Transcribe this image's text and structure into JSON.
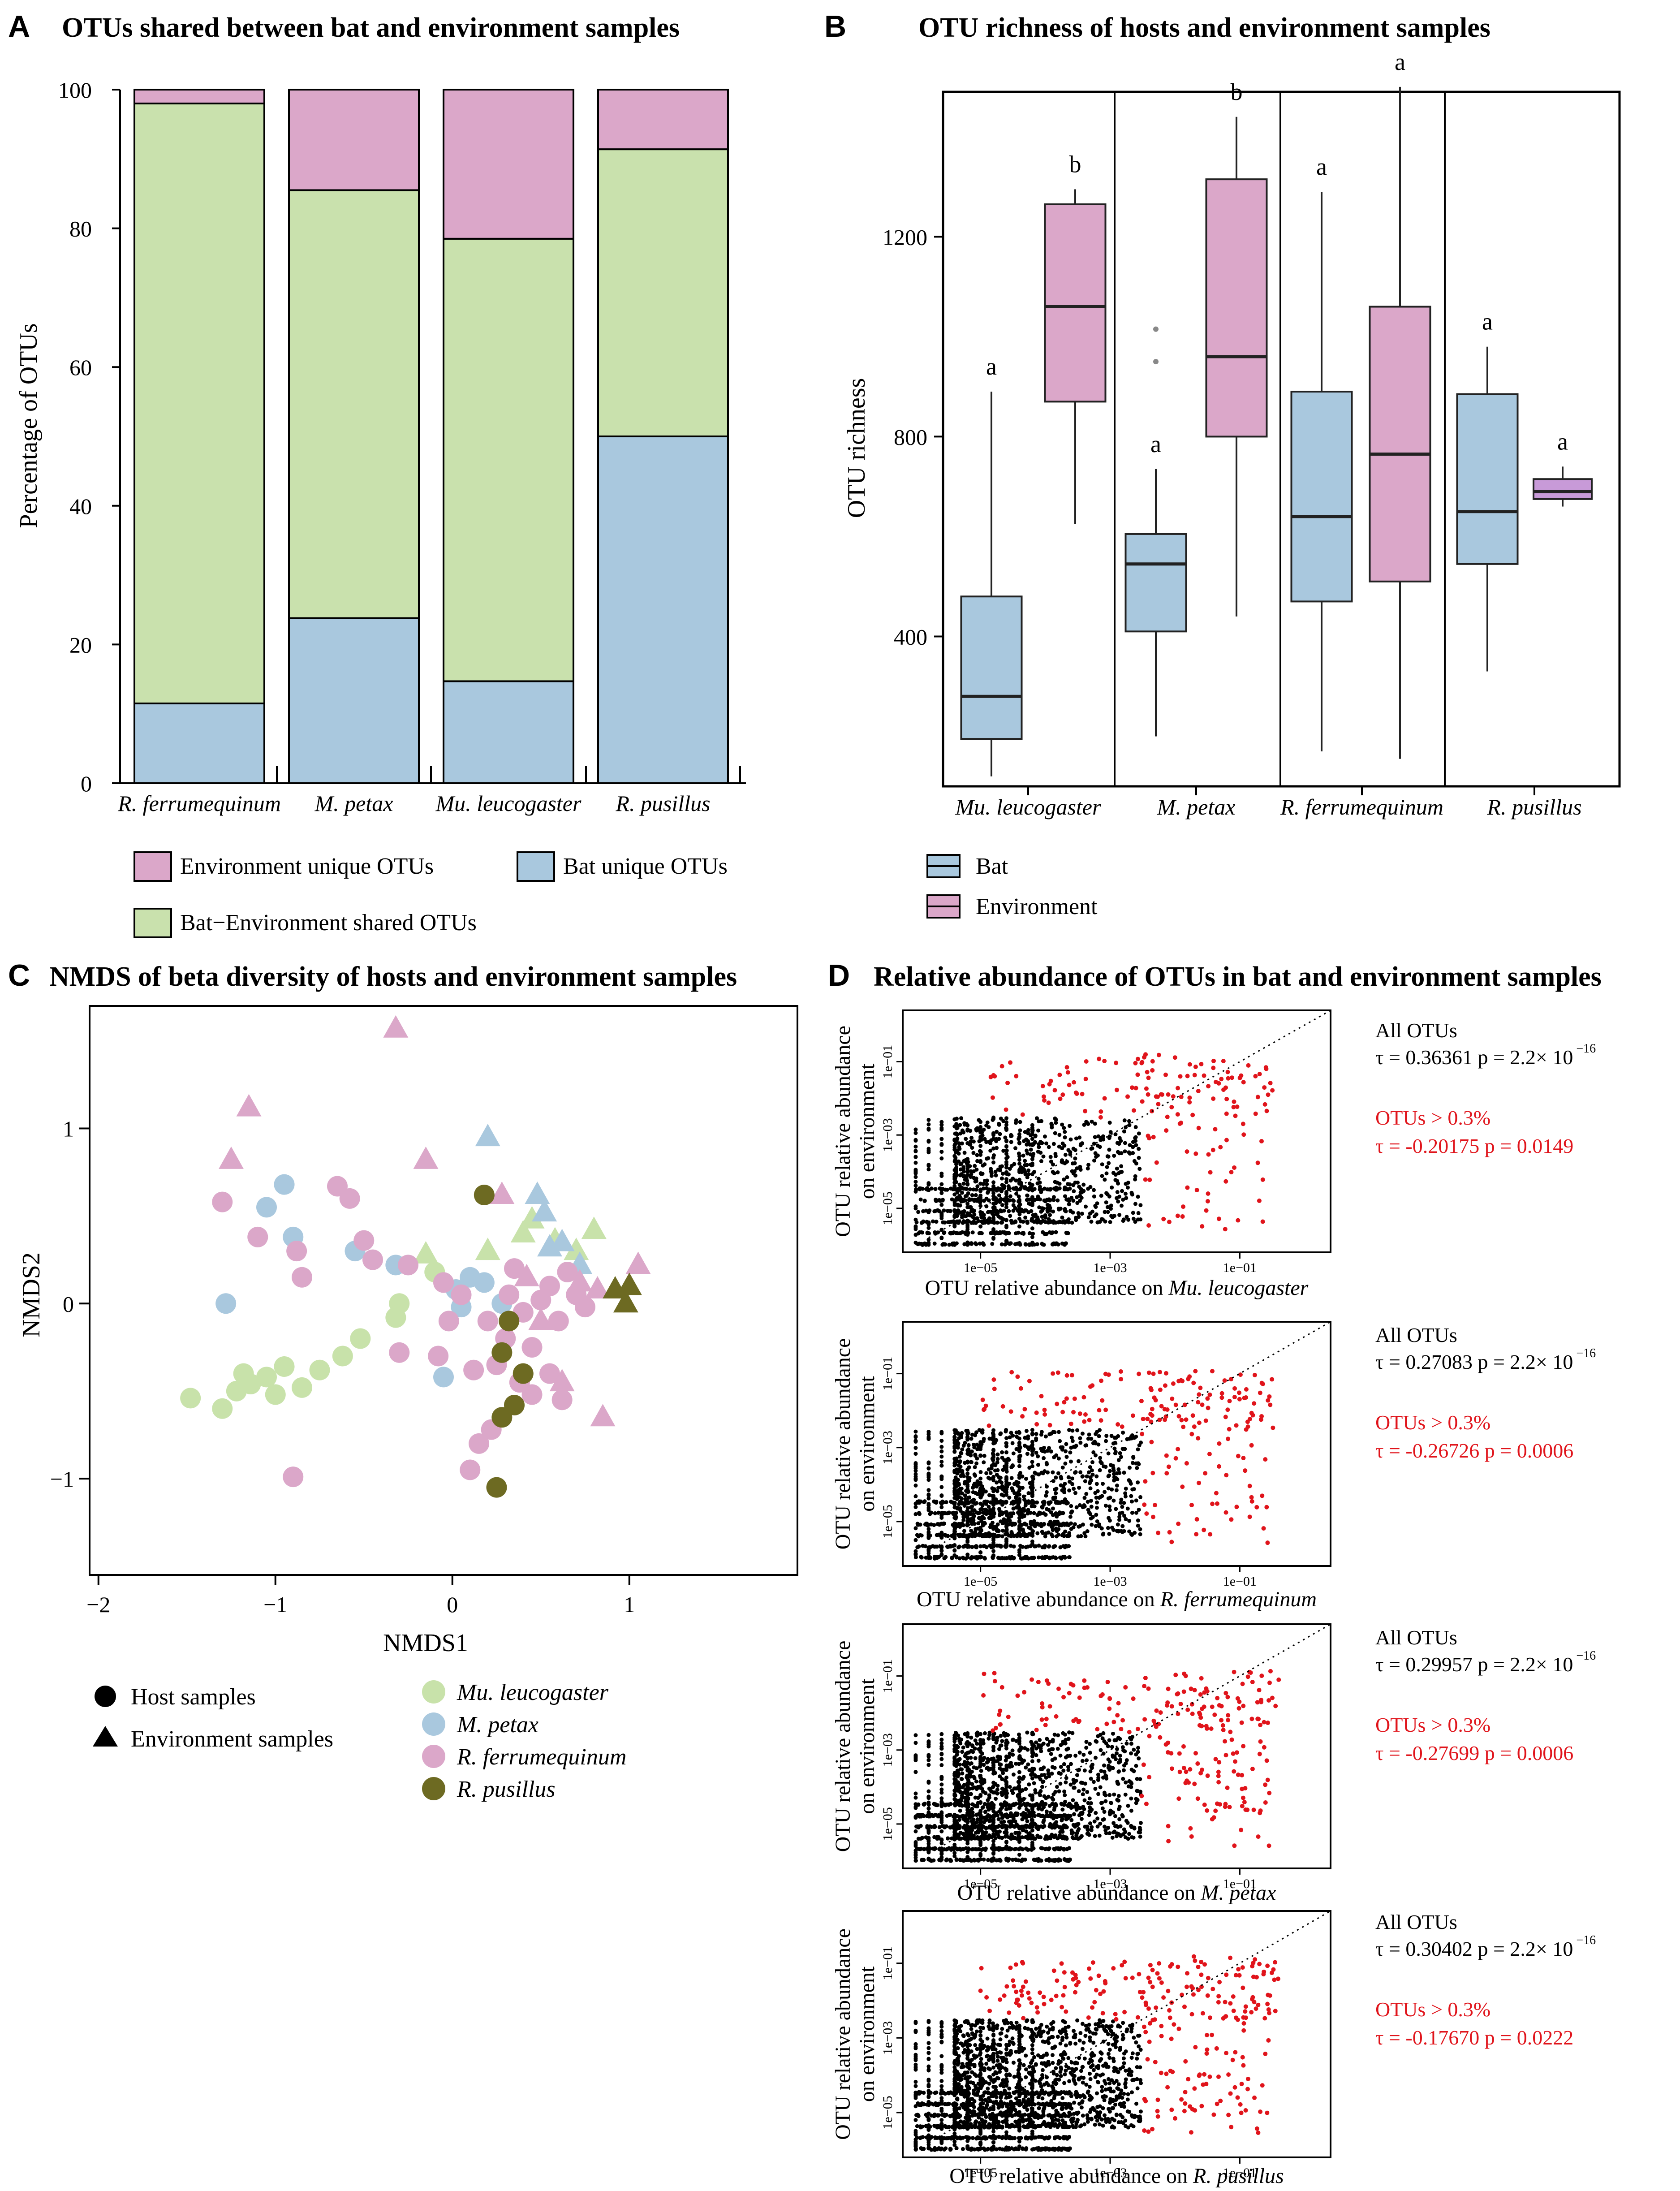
{
  "colors": {
    "env": "#dba7c9",
    "bat": "#a9c8de",
    "shared": "#c9e1ad",
    "mu": "#c8e2aa",
    "mpetax": "#a9c8de",
    "rferrum": "#dba7c9",
    "rpusillus": "#6d6a22",
    "red": "#e0141b",
    "black": "#000000",
    "batbox": "#a9c8de",
    "envbox": "#dba7c9",
    "envbox_small": "#c89ad8"
  },
  "chart_data": [
    {
      "panel": "A",
      "type": "bar",
      "stacked": true,
      "title": "OTUs shared between bat and environment samples",
      "ylabel": "Percentage of OTUs",
      "ylim": [
        0,
        100
      ],
      "yticks": [
        "0",
        "20",
        "40",
        "60",
        "80",
        "100"
      ],
      "categories": [
        "R. ferrumequinum",
        "M. petax",
        "Mu. leucogaster",
        "R. pusillus"
      ],
      "series": [
        {
          "name": "Bat unique OTUs",
          "values": [
            11.5,
            23.8,
            14.7,
            50.0
          ]
        },
        {
          "name": "Bat−Environment  shared OTUs",
          "values": [
            86.5,
            61.7,
            63.8,
            41.4
          ]
        },
        {
          "name": "Environment  unique OTUs",
          "values": [
            2.0,
            14.5,
            21.5,
            8.6
          ]
        }
      ],
      "legend": [
        "Environment  unique OTUs",
        "Bat unique OTUs",
        "Bat−Environment  shared OTUs"
      ]
    },
    {
      "panel": "B",
      "type": "box",
      "title": "OTU richness of hosts and environment samples",
      "ylabel": "OTU richness",
      "ylim": [
        100,
        1490
      ],
      "yticks": [
        "400",
        "800",
        "1200"
      ],
      "categories": [
        "Mu. leucogaster",
        "M. petax",
        "R. ferrumequinum",
        "R. pusillus"
      ],
      "legend": [
        "Bat",
        "Environment"
      ],
      "boxes": [
        {
          "group": "Mu. leucogaster",
          "kind": "Bat",
          "min": 120,
          "q1": 195,
          "median": 280,
          "q3": 480,
          "max": 890,
          "label": "a",
          "outliers": []
        },
        {
          "group": "Mu. leucogaster",
          "kind": "Environment",
          "min": 625,
          "q1": 870,
          "median": 1060,
          "q3": 1265,
          "max": 1295,
          "label": "b",
          "outliers": []
        },
        {
          "group": "M. petax",
          "kind": "Bat",
          "min": 200,
          "q1": 410,
          "median": 545,
          "q3": 605,
          "max": 735,
          "label": "a",
          "outliers": [
            950,
            1015
          ]
        },
        {
          "group": "M. petax",
          "kind": "Environment",
          "min": 440,
          "q1": 800,
          "median": 960,
          "q3": 1315,
          "max": 1440,
          "label": "b",
          "outliers": []
        },
        {
          "group": "R. ferrumequinum",
          "kind": "Bat",
          "min": 170,
          "q1": 470,
          "median": 640,
          "q3": 890,
          "max": 1290,
          "label": "a",
          "outliers": []
        },
        {
          "group": "R. ferrumequinum",
          "kind": "Environment",
          "min": 155,
          "q1": 510,
          "median": 765,
          "q3": 1060,
          "max": 1500,
          "label": "a",
          "outliers": []
        },
        {
          "group": "R. pusillus",
          "kind": "Bat",
          "min": 330,
          "q1": 545,
          "median": 650,
          "q3": 885,
          "max": 980,
          "label": "a",
          "outliers": []
        },
        {
          "group": "R. pusillus",
          "kind": "Environment",
          "min": 660,
          "q1": 675,
          "median": 690,
          "q3": 715,
          "max": 740,
          "label": "a",
          "outliers": []
        }
      ]
    },
    {
      "panel": "C",
      "type": "scatter",
      "title": "NMDS of beta diversity of hosts and environment samples",
      "xlabel": "NMDS1",
      "ylabel": "NMDS2",
      "xlim": [
        -2.05,
        1.95
      ],
      "ylim": [
        -1.55,
        1.7
      ],
      "xticks": [
        "−2",
        "−1",
        "0",
        "1"
      ],
      "yticks": [
        "−1",
        "0",
        "1"
      ],
      "shape_legend": [
        "Host samples",
        "Environment samples"
      ],
      "color_legend": [
        "Mu. leucogaster",
        "M. petax",
        "R. ferrumequinum",
        "R. pusillus"
      ],
      "points": [
        {
          "x": -1.48,
          "y": -0.54,
          "g": "mu",
          "s": "c"
        },
        {
          "x": -1.3,
          "y": -0.6,
          "g": "mu",
          "s": "c"
        },
        {
          "x": -1.22,
          "y": -0.5,
          "g": "mu",
          "s": "c"
        },
        {
          "x": -1.14,
          "y": -0.46,
          "g": "mu",
          "s": "c"
        },
        {
          "x": -1.05,
          "y": -0.42,
          "g": "mu",
          "s": "c"
        },
        {
          "x": -0.95,
          "y": -0.36,
          "g": "mu",
          "s": "c"
        },
        {
          "x": -0.85,
          "y": -0.48,
          "g": "mu",
          "s": "c"
        },
        {
          "x": -0.75,
          "y": -0.38,
          "g": "mu",
          "s": "c"
        },
        {
          "x": -0.62,
          "y": -0.3,
          "g": "mu",
          "s": "c"
        },
        {
          "x": -0.52,
          "y": -0.2,
          "g": "mu",
          "s": "c"
        },
        {
          "x": -0.32,
          "y": -0.08,
          "g": "mu",
          "s": "c"
        },
        {
          "x": -0.3,
          "y": 0.0,
          "g": "mu",
          "s": "c"
        },
        {
          "x": -0.1,
          "y": 0.18,
          "g": "mu",
          "s": "c"
        },
        {
          "x": -1.18,
          "y": -0.4,
          "g": "mu",
          "s": "c"
        },
        {
          "x": -1.0,
          "y": -0.52,
          "g": "mu",
          "s": "c"
        },
        {
          "x": -0.15,
          "y": 0.28,
          "g": "mu",
          "s": "t"
        },
        {
          "x": 0.2,
          "y": 0.3,
          "g": "mu",
          "s": "t"
        },
        {
          "x": 0.4,
          "y": 0.4,
          "g": "mu",
          "s": "t"
        },
        {
          "x": 0.45,
          "y": 0.48,
          "g": "mu",
          "s": "t"
        },
        {
          "x": 0.58,
          "y": 0.36,
          "g": "mu",
          "s": "t"
        },
        {
          "x": 0.8,
          "y": 0.42,
          "g": "mu",
          "s": "t"
        },
        {
          "x": 0.7,
          "y": 0.3,
          "g": "mu",
          "s": "t"
        },
        {
          "x": -1.28,
          "y": 0.0,
          "g": "mp",
          "s": "c"
        },
        {
          "x": -1.05,
          "y": 0.55,
          "g": "mp",
          "s": "c"
        },
        {
          "x": -0.95,
          "y": 0.68,
          "g": "mp",
          "s": "c"
        },
        {
          "x": -0.9,
          "y": 0.38,
          "g": "mp",
          "s": "c"
        },
        {
          "x": -0.55,
          "y": 0.3,
          "g": "mp",
          "s": "c"
        },
        {
          "x": -0.32,
          "y": 0.22,
          "g": "mp",
          "s": "c"
        },
        {
          "x": 0.02,
          "y": 0.08,
          "g": "mp",
          "s": "c"
        },
        {
          "x": 0.1,
          "y": 0.15,
          "g": "mp",
          "s": "c"
        },
        {
          "x": 0.05,
          "y": -0.02,
          "g": "mp",
          "s": "c"
        },
        {
          "x": 0.28,
          "y": 0.0,
          "g": "mp",
          "s": "c"
        },
        {
          "x": -0.05,
          "y": -0.42,
          "g": "mp",
          "s": "c"
        },
        {
          "x": 0.18,
          "y": 0.12,
          "g": "mp",
          "s": "c"
        },
        {
          "x": 0.2,
          "y": 0.95,
          "g": "mp",
          "s": "t"
        },
        {
          "x": 0.48,
          "y": 0.62,
          "g": "mp",
          "s": "t"
        },
        {
          "x": 0.52,
          "y": 0.52,
          "g": "mp",
          "s": "t"
        },
        {
          "x": 0.55,
          "y": 0.32,
          "g": "mp",
          "s": "t"
        },
        {
          "x": 0.62,
          "y": 0.35,
          "g": "mp",
          "s": "t"
        },
        {
          "x": 0.72,
          "y": 0.22,
          "g": "mp",
          "s": "t"
        },
        {
          "x": -1.3,
          "y": 0.58,
          "g": "rf",
          "s": "c"
        },
        {
          "x": -1.1,
          "y": 0.38,
          "g": "rf",
          "s": "c"
        },
        {
          "x": -0.88,
          "y": 0.3,
          "g": "rf",
          "s": "c"
        },
        {
          "x": -0.85,
          "y": 0.15,
          "g": "rf",
          "s": "c"
        },
        {
          "x": -0.65,
          "y": 0.67,
          "g": "rf",
          "s": "c"
        },
        {
          "x": -0.58,
          "y": 0.6,
          "g": "rf",
          "s": "c"
        },
        {
          "x": -0.5,
          "y": 0.36,
          "g": "rf",
          "s": "c"
        },
        {
          "x": -0.45,
          "y": 0.25,
          "g": "rf",
          "s": "c"
        },
        {
          "x": -0.25,
          "y": 0.22,
          "g": "rf",
          "s": "c"
        },
        {
          "x": -0.05,
          "y": 0.12,
          "g": "rf",
          "s": "c"
        },
        {
          "x": 0.05,
          "y": 0.05,
          "g": "rf",
          "s": "c"
        },
        {
          "x": -0.02,
          "y": -0.1,
          "g": "rf",
          "s": "c"
        },
        {
          "x": -0.3,
          "y": -0.28,
          "g": "rf",
          "s": "c"
        },
        {
          "x": -0.08,
          "y": -0.3,
          "g": "rf",
          "s": "c"
        },
        {
          "x": 0.12,
          "y": -0.38,
          "g": "rf",
          "s": "c"
        },
        {
          "x": 0.25,
          "y": -0.35,
          "g": "rf",
          "s": "c"
        },
        {
          "x": 0.38,
          "y": -0.45,
          "g": "rf",
          "s": "c"
        },
        {
          "x": 0.45,
          "y": -0.52,
          "g": "rf",
          "s": "c"
        },
        {
          "x": 0.55,
          "y": -0.4,
          "g": "rf",
          "s": "c"
        },
        {
          "x": 0.62,
          "y": -0.55,
          "g": "rf",
          "s": "c"
        },
        {
          "x": 0.22,
          "y": -0.72,
          "g": "rf",
          "s": "c"
        },
        {
          "x": 0.15,
          "y": -0.8,
          "g": "rf",
          "s": "c"
        },
        {
          "x": 0.1,
          "y": -0.95,
          "g": "rf",
          "s": "c"
        },
        {
          "x": -0.9,
          "y": -0.99,
          "g": "rf",
          "s": "c"
        },
        {
          "x": 0.32,
          "y": 0.05,
          "g": "rf",
          "s": "c"
        },
        {
          "x": 0.4,
          "y": -0.05,
          "g": "rf",
          "s": "c"
        },
        {
          "x": 0.5,
          "y": 0.02,
          "g": "rf",
          "s": "c"
        },
        {
          "x": 0.6,
          "y": -0.1,
          "g": "rf",
          "s": "c"
        },
        {
          "x": 0.7,
          "y": 0.05,
          "g": "rf",
          "s": "c"
        },
        {
          "x": 0.3,
          "y": -0.2,
          "g": "rf",
          "s": "c"
        },
        {
          "x": 0.45,
          "y": -0.25,
          "g": "rf",
          "s": "c"
        },
        {
          "x": 0.55,
          "y": 0.1,
          "g": "rf",
          "s": "c"
        },
        {
          "x": 0.75,
          "y": -0.02,
          "g": "rf",
          "s": "c"
        },
        {
          "x": 0.35,
          "y": 0.2,
          "g": "rf",
          "s": "c"
        },
        {
          "x": 0.2,
          "y": -0.1,
          "g": "rf",
          "s": "c"
        },
        {
          "x": 0.65,
          "y": 0.18,
          "g": "rf",
          "s": "c"
        },
        {
          "x": -0.32,
          "y": 1.57,
          "g": "rf",
          "s": "t"
        },
        {
          "x": -1.15,
          "y": 1.12,
          "g": "rf",
          "s": "t"
        },
        {
          "x": -1.25,
          "y": 0.82,
          "g": "rf",
          "s": "t"
        },
        {
          "x": -0.15,
          "y": 0.82,
          "g": "rf",
          "s": "t"
        },
        {
          "x": 0.28,
          "y": 0.62,
          "g": "rf",
          "s": "t"
        },
        {
          "x": 0.42,
          "y": 0.15,
          "g": "rf",
          "s": "t"
        },
        {
          "x": 0.62,
          "y": -0.45,
          "g": "rf",
          "s": "t"
        },
        {
          "x": 0.85,
          "y": -0.65,
          "g": "rf",
          "s": "t"
        },
        {
          "x": 1.05,
          "y": 0.22,
          "g": "rf",
          "s": "t"
        },
        {
          "x": 0.82,
          "y": 0.08,
          "g": "rf",
          "s": "t"
        },
        {
          "x": 0.5,
          "y": -0.1,
          "g": "rf",
          "s": "t"
        },
        {
          "x": 0.72,
          "y": 0.12,
          "g": "rf",
          "s": "t"
        },
        {
          "x": 0.18,
          "y": 0.62,
          "g": "rp",
          "s": "c"
        },
        {
          "x": 0.32,
          "y": -0.1,
          "g": "rp",
          "s": "c"
        },
        {
          "x": 0.28,
          "y": -0.28,
          "g": "rp",
          "s": "c"
        },
        {
          "x": 0.4,
          "y": -0.4,
          "g": "rp",
          "s": "c"
        },
        {
          "x": 0.35,
          "y": -0.58,
          "g": "rp",
          "s": "c"
        },
        {
          "x": 0.28,
          "y": -0.65,
          "g": "rp",
          "s": "c"
        },
        {
          "x": 0.25,
          "y": -1.05,
          "g": "rp",
          "s": "c"
        },
        {
          "x": 0.92,
          "y": 0.08,
          "g": "rp",
          "s": "t"
        },
        {
          "x": 0.98,
          "y": 0.0,
          "g": "rp",
          "s": "t"
        },
        {
          "x": 1.0,
          "y": 0.1,
          "g": "rp",
          "s": "t"
        }
      ]
    },
    {
      "panel": "D",
      "type": "scatter",
      "scale": "log",
      "title": "Relative abundance of OTUs in bat and environment samples",
      "ylabel_lines": [
        "OTU relative abundance",
        "on environment"
      ],
      "xlabel_prefix": "OTU relative abundance on ",
      "ticks": [
        "1e−05",
        "1e−03",
        "1e−01"
      ],
      "threshold": "OTUs > 0.3%",
      "subplots": [
        {
          "host": "Mu. leucogaster",
          "all_label": "All OTUs",
          "tau_all": "τ = 0.36361",
          "p_all": "p = 2.2× 10",
          "p_exp": "−16",
          "thr_label": "OTUs > 0.3%",
          "tau_thr": "τ = -0.20175",
          "p_thr": "p = 0.0149"
        },
        {
          "host": "R. ferrumequinum",
          "all_label": "All OTUs",
          "tau_all": "τ = 0.27083",
          "p_all": "p = 2.2× 10",
          "p_exp": "−16",
          "thr_label": "OTUs > 0.3%",
          "tau_thr": "τ = -0.26726",
          "p_thr": "p = 0.0006"
        },
        {
          "host": "M. petax",
          "all_label": "All OTUs",
          "tau_all": "τ = 0.29957",
          "p_all": "p = 2.2× 10",
          "p_exp": "−16",
          "thr_label": "OTUs > 0.3%",
          "tau_thr": "τ = -0.27699",
          "p_thr": "p = 0.0006"
        },
        {
          "host": "R. pusillus",
          "all_label": "All OTUs",
          "tau_all": "τ = 0.30402",
          "p_all": "p = 2.2× 10",
          "p_exp": "−16",
          "thr_label": "OTUs > 0.3%",
          "tau_thr": "τ = -0.17670",
          "p_thr": "p = 0.0222"
        }
      ]
    }
  ]
}
